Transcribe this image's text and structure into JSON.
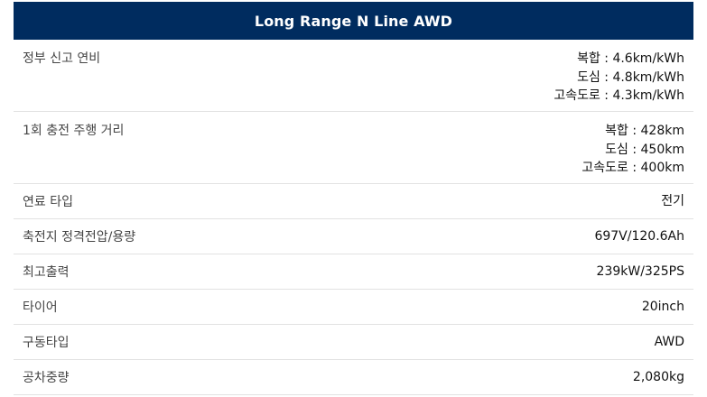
{
  "header": {
    "title": "Long Range N Line AWD"
  },
  "specs": [
    {
      "label": "정부 신고 연비",
      "values": [
        "복합 : 4.6km/kWh",
        "도심 : 4.8km/kWh",
        "고속도로 : 4.3km/kWh"
      ]
    },
    {
      "label": "1회 충전 주행 거리",
      "values": [
        "복합 : 428km",
        "도심 : 450km",
        "고속도로 : 400km"
      ]
    },
    {
      "label": "연료 타입",
      "values": [
        "전기"
      ]
    },
    {
      "label": "축전지 정격전압/용량",
      "values": [
        "697V/120.6Ah"
      ]
    },
    {
      "label": "최고출력",
      "values": [
        "239kW/325PS"
      ]
    },
    {
      "label": "타이어",
      "values": [
        "20inch"
      ]
    },
    {
      "label": "구동타입",
      "values": [
        "AWD"
      ]
    },
    {
      "label": "공차중량",
      "values": [
        "2,080kg"
      ]
    }
  ]
}
